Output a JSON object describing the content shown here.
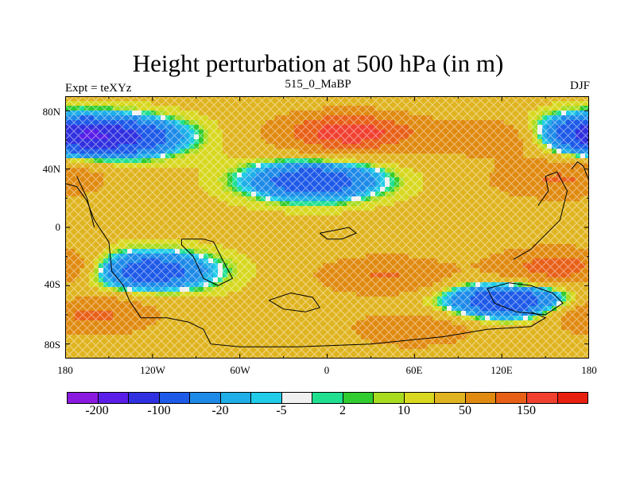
{
  "title": "Height perturbation at 500 hPa (in m)",
  "subtitle_left": "Expt = teXYz",
  "subtitle_center": "515_0_MaBP",
  "subtitle_right": "DJF",
  "y_ticks": [
    "80N",
    "40N",
    "0",
    "40S",
    "80S"
  ],
  "x_ticks": [
    "180",
    "120W",
    "60W",
    "0",
    "60E",
    "120E",
    "180"
  ],
  "colorbar": {
    "colors": [
      "#8a1ae0",
      "#5a1ee8",
      "#3030e0",
      "#1e5ae8",
      "#1e8ae8",
      "#1eaee8",
      "#20cce8",
      "#f0f0f0",
      "#20e090",
      "#30cc30",
      "#a8dc20",
      "#d8d820",
      "#e0b420",
      "#e08a10",
      "#e86018",
      "#f04030",
      "#e82010"
    ],
    "labels": [
      "-200",
      "-100",
      "-20",
      "-5",
      "2",
      "10",
      "50",
      "150"
    ]
  },
  "chart_data": {
    "type": "heatmap",
    "title": "Height perturbation at 500 hPa (in m)",
    "xlabel": "",
    "ylabel": "",
    "x_ticks": [
      "180",
      "120W",
      "60W",
      "0",
      "60E",
      "120E",
      "180"
    ],
    "y_ticks": [
      "80N",
      "40N",
      "0",
      "40S",
      "80S"
    ],
    "xlim": [
      -180,
      180
    ],
    "ylim": [
      -90,
      90
    ],
    "units": "m",
    "contour_levels": [
      -200,
      -150,
      -100,
      -50,
      -20,
      -10,
      -5,
      -2,
      2,
      5,
      10,
      20,
      50,
      100,
      150,
      200
    ],
    "features": [
      {
        "name": "negative center NW",
        "lon": -145,
        "lat": 62,
        "value": -120
      },
      {
        "name": "positive center N",
        "lon": 15,
        "lat": 65,
        "value": 160
      },
      {
        "name": "positive band NE",
        "lon": 120,
        "lat": 62,
        "value": 80
      },
      {
        "name": "negative center NE edge",
        "lon": 175,
        "lat": 64,
        "value": -110
      },
      {
        "name": "negative band",
        "lon": -10,
        "lat": 32,
        "value": -110
      },
      {
        "name": "positive band 40N east",
        "lon": 160,
        "lat": 33,
        "value": 80
      },
      {
        "name": "negative center S Pacific",
        "lon": -125,
        "lat": -30,
        "value": -110
      },
      {
        "name": "negative center S Indian/Aus",
        "lon": 125,
        "lat": -50,
        "value": -120
      },
      {
        "name": "positive center SW",
        "lon": -165,
        "lat": -60,
        "value": 90
      },
      {
        "name": "positive band S Atlantic",
        "lon": 40,
        "lat": -33,
        "value": 80
      },
      {
        "name": "positive center SE",
        "lon": 160,
        "lat": -28,
        "value": 110
      },
      {
        "name": "positive south band",
        "lon": 60,
        "lat": -70,
        "value": 60
      }
    ]
  }
}
